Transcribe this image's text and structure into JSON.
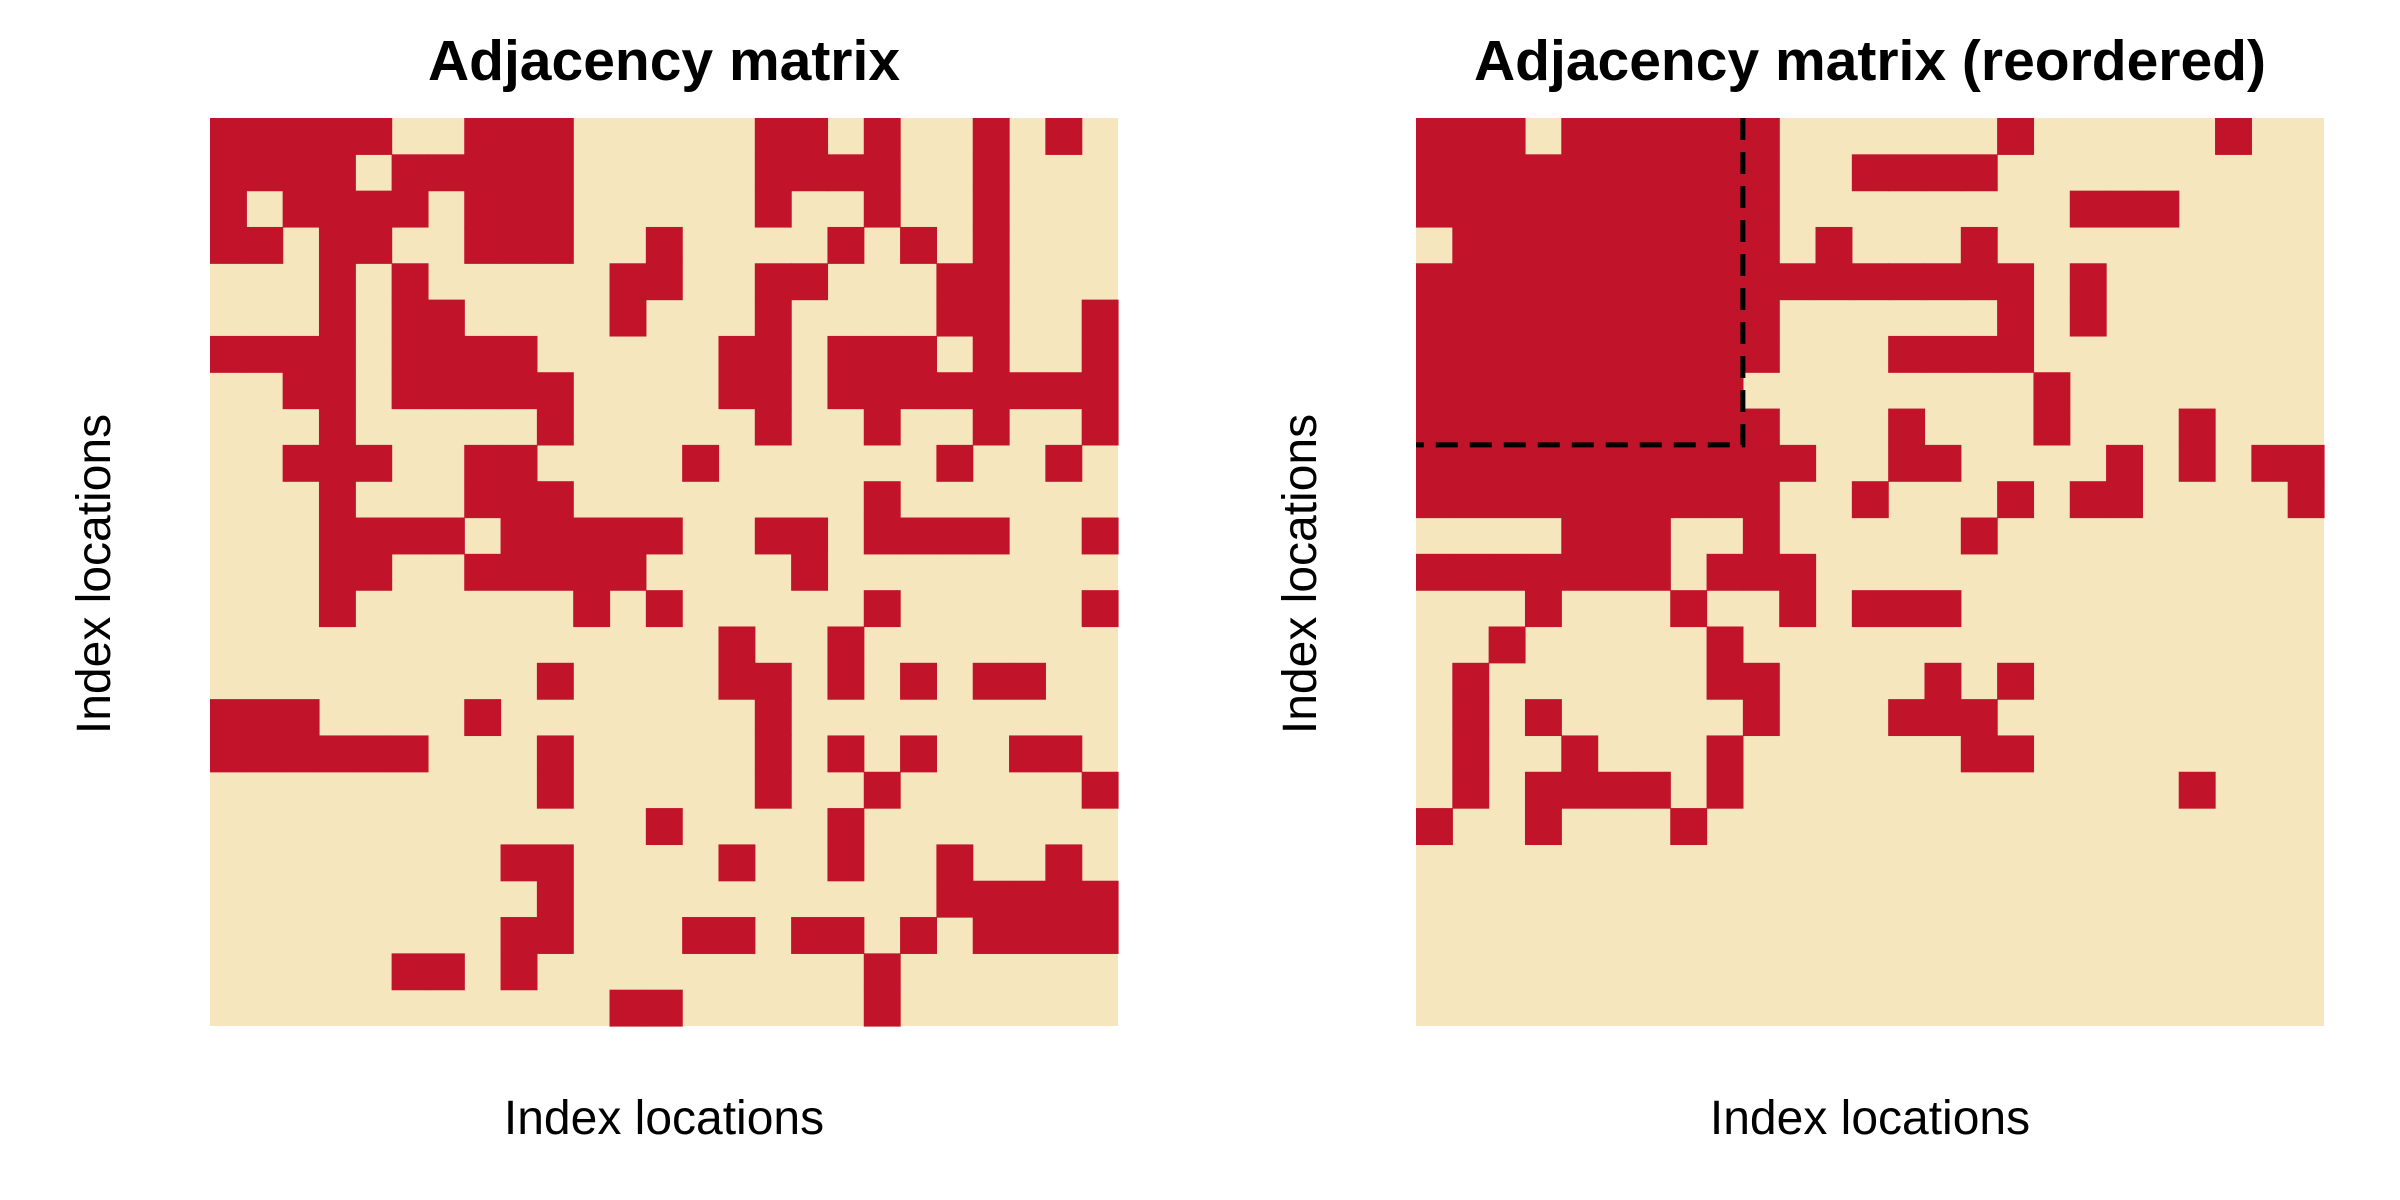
{
  "chart_data": [
    {
      "type": "heatmap",
      "title": "Adjacency matrix",
      "xlabel": "Index locations",
      "ylabel": "Index locations",
      "size": 25,
      "values": [
        0,
        1
      ],
      "colors": {
        "0": "#f5e6bd",
        "1": "#c1142a"
      },
      "grid": false,
      "matrix": [
        "1111100111000001101001010",
        "1111011111000001111001000",
        "1011110111000001001001000",
        "1101100111001000010101000",
        "0001010000011001100011000",
        "0001011000010001000011001",
        "1111011110000011011101001",
        "0011011111000011011111111",
        "0001000001000001001001001",
        "0011100110000100000010010",
        "0001000111000000001000000",
        "0001111011111001101111001",
        "0001100111110000100000000",
        "0001000000101000001000001",
        "0000000000000010010000000",
        "0000000001000011010101100",
        "1110000100000001000000000",
        "1111110001000001010100110",
        "0000000001000001001000001",
        "0000000000001000010000000",
        "0000000011000010010010010",
        "0000000001000000000011111",
        "0000000011000110110101111",
        "0000011010000000001000000",
        "0000000000011000001000000"
      ]
    },
    {
      "type": "heatmap",
      "title": "Adjacency matrix (reordered)",
      "xlabel": "Index locations",
      "ylabel": "Index locations",
      "size": 25,
      "values": [
        0,
        1
      ],
      "colors": {
        "0": "#f5e6bd",
        "1": "#c1142a"
      },
      "grid": false,
      "cluster_outline": {
        "rows": 9,
        "cols": 9,
        "style": "dashed",
        "color": "#000000"
      },
      "matrix": [
        "1110111111000000100000100",
        "1111111111001111000000000",
        "1111111111000000001110000",
        "0111111111010001000000000",
        "1111111111111111101000000",
        "1111111111000000101000000",
        "1111111111000111100000000",
        "1111111110000000010000000",
        "1111111111000100010001000",
        "1111111111100110000101011",
        "1111111111001000101100001",
        "0000111001000001000000000",
        "1111111011100000000000000",
        "0001000100101110000000000",
        "0010000010000000000000000",
        "0100000011000010100000000",
        "0101000001000111000000000",
        "0100100010000001100000000",
        "0101111010000000000001000",
        "1001000100000000000000000",
        "0000000000000000000000000",
        "0000000000000000000000000",
        "0000000000000000000000000",
        "0000000000000000000000000",
        "0000000000000000000000000"
      ]
    }
  ]
}
